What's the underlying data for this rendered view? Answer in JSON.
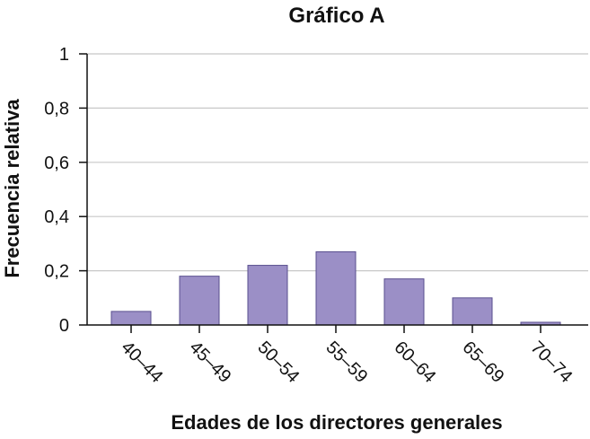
{
  "chart_data": {
    "type": "bar",
    "title": "Gráfico A",
    "xlabel": "Edades de los directores generales",
    "ylabel": "Frecuencia relativa",
    "categories": [
      "40–44",
      "45–49",
      "50–54",
      "55–59",
      "60–64",
      "65–69",
      "70–74"
    ],
    "values": [
      0.05,
      0.18,
      0.22,
      0.27,
      0.17,
      0.1,
      0.01
    ],
    "ylim": [
      0,
      1
    ],
    "yticks": [
      "0",
      "0,2",
      "0,4",
      "0,6",
      "0,8",
      "1"
    ],
    "grid": true,
    "bar_color": "#9b8fc6",
    "bar_edge_color": "#5a4f8f",
    "grid_color": "#c8c8c8",
    "axis_color": "#111111"
  }
}
